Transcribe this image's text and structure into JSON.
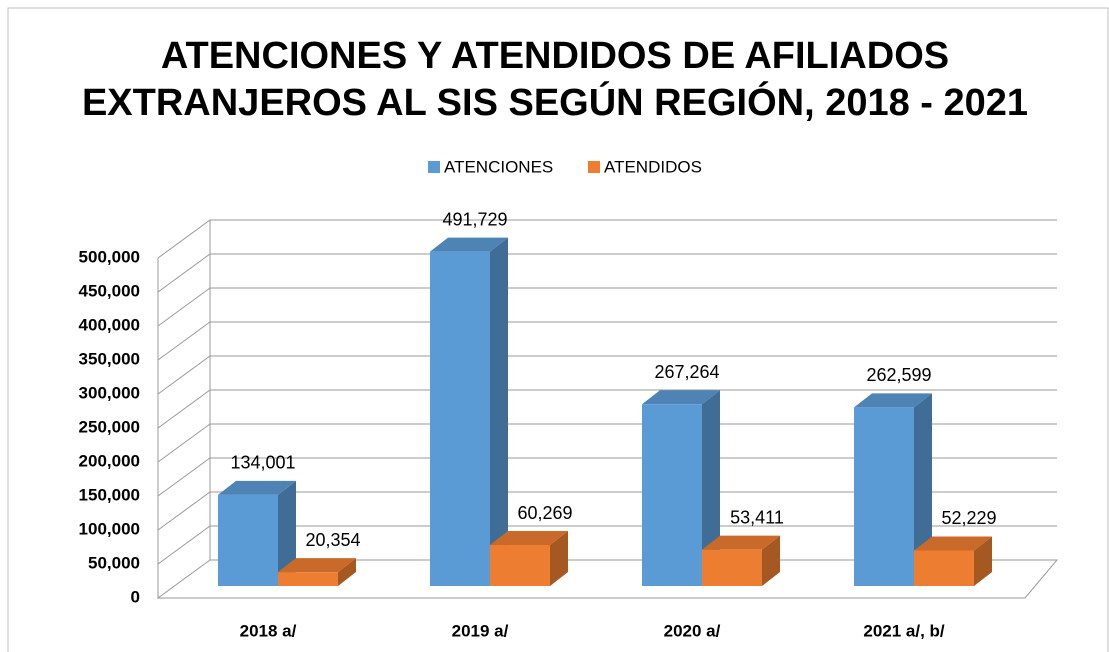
{
  "chart_data": {
    "type": "bar3d",
    "title": [
      "ATENCIONES Y ATENDIDOS DE AFILIADOS",
      "EXTRANJEROS AL SIS SEGÚN REGIÓN, 2018 - 2021"
    ],
    "categories": [
      "2018 a/",
      "2019 a/",
      "2020 a/",
      "2021 a/, b/"
    ],
    "series": [
      {
        "name": "ATENCIONES",
        "color": "#5b9bd5",
        "values": [
          134001,
          491729,
          267264,
          262599
        ],
        "value_labels": [
          "134,001",
          "491,729",
          "267,264",
          "262,599"
        ]
      },
      {
        "name": "ATENDIDOS",
        "color": "#ed7d31",
        "values": [
          20354,
          60269,
          53411,
          52229
        ],
        "value_labels": [
          "20,354",
          "60,269",
          "53,411",
          "52,229"
        ]
      }
    ],
    "ylim": [
      0,
      500000
    ],
    "yticks": [
      0,
      {
        "value": 50000,
        "label": "50,000"
      },
      {
        "value": 100000,
        "label": "100,000"
      },
      {
        "value": 150000,
        "label": "150,000"
      },
      {
        "value": 200000,
        "label": "200,000"
      },
      {
        "value": 250000,
        "label": "250,000"
      },
      {
        "value": 300000,
        "label": "300,000"
      },
      {
        "value": 350000,
        "label": "350,000"
      },
      {
        "value": 400000,
        "label": "400,000"
      },
      {
        "value": 450000,
        "label": "450,000"
      },
      {
        "value": 500000,
        "label": "500,000"
      }
    ],
    "grid": true,
    "legend": "top"
  }
}
